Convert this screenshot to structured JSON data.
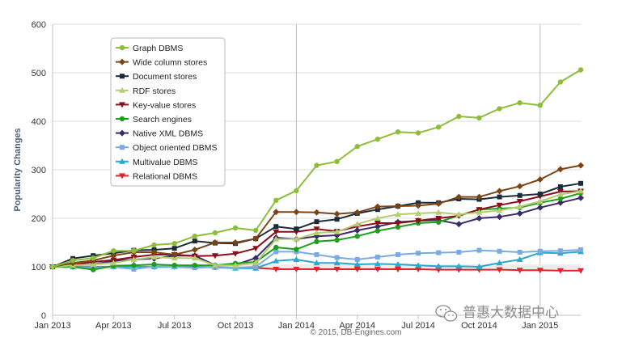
{
  "chart_data": {
    "type": "line",
    "ylabel": "Popularity Changes",
    "ylim": [
      0,
      600
    ],
    "yticks": [
      0,
      100,
      200,
      300,
      400,
      500,
      600
    ],
    "xticks": [
      {
        "label": "Jan 2013",
        "month": 0
      },
      {
        "label": "Apr 2013",
        "month": 3
      },
      {
        "label": "Jul 2013",
        "month": 6
      },
      {
        "label": "Oct 2013",
        "month": 9
      },
      {
        "label": "Jan 2014",
        "month": 12
      },
      {
        "label": "Apr 2014",
        "month": 15
      },
      {
        "label": "Jul 2014",
        "month": 18
      },
      {
        "label": "Oct 2014",
        "month": 21
      },
      {
        "label": "Jan 2015",
        "month": 24
      }
    ],
    "xrange": [
      0,
      26
    ],
    "x": [
      0,
      1,
      2,
      3,
      4,
      5,
      6,
      7,
      8,
      9,
      10,
      11,
      12,
      13,
      14,
      15,
      16,
      17,
      18,
      19,
      20,
      21,
      22,
      23,
      24,
      25,
      26
    ],
    "credit": "© 2015, DB-Engines.com",
    "series": [
      {
        "name": "Graph DBMS",
        "color": "#8dbd3a",
        "marker": "circle",
        "values": [
          100,
          113,
          118,
          133,
          133,
          145,
          148,
          163,
          170,
          180,
          175,
          237,
          257,
          309,
          317,
          348,
          363,
          378,
          376,
          388,
          410,
          407,
          426,
          438,
          433,
          481,
          506
        ]
      },
      {
        "name": "Wide column stores",
        "color": "#7a4416",
        "marker": "diamond",
        "values": [
          100,
          108,
          113,
          123,
          130,
          130,
          125,
          135,
          150,
          150,
          158,
          213,
          213,
          212,
          209,
          212,
          224,
          225,
          226,
          230,
          244,
          244,
          256,
          266,
          280,
          301,
          309
        ]
      },
      {
        "name": "Document stores",
        "color": "#1c2b3a",
        "marker": "square",
        "values": [
          100,
          117,
          123,
          128,
          134,
          135,
          138,
          153,
          149,
          148,
          158,
          183,
          178,
          193,
          198,
          210,
          218,
          225,
          232,
          232,
          240,
          239,
          244,
          247,
          250,
          265,
          272
        ]
      },
      {
        "name": "RDF stores",
        "color": "#b5cc73",
        "marker": "triangle",
        "values": [
          100,
          103,
          105,
          108,
          115,
          120,
          118,
          118,
          103,
          103,
          108,
          157,
          157,
          170,
          172,
          188,
          200,
          208,
          210,
          212,
          208,
          212,
          216,
          224,
          235,
          249,
          256
        ]
      },
      {
        "name": "Key-value stores",
        "color": "#8b0f1a",
        "marker": "triangle-down",
        "values": [
          100,
          104,
          110,
          114,
          120,
          125,
          125,
          122,
          123,
          127,
          138,
          172,
          172,
          178,
          173,
          183,
          190,
          190,
          195,
          200,
          205,
          218,
          227,
          235,
          245,
          255,
          256
        ]
      },
      {
        "name": "Search engines",
        "color": "#1ca01c",
        "marker": "circle",
        "values": [
          100,
          100,
          94,
          102,
          103,
          105,
          103,
          103,
          103,
          107,
          110,
          140,
          136,
          152,
          155,
          163,
          174,
          182,
          190,
          192,
          206,
          218,
          220,
          222,
          232,
          240,
          252
        ]
      },
      {
        "name": "Native XML DBMS",
        "color": "#3b2b6b",
        "marker": "diamond",
        "values": [
          100,
          103,
          105,
          112,
          115,
          117,
          123,
          123,
          103,
          104,
          118,
          160,
          157,
          163,
          165,
          175,
          183,
          192,
          195,
          196,
          188,
          200,
          203,
          210,
          222,
          232,
          242
        ]
      },
      {
        "name": "Object oriented DBMS",
        "color": "#7aaae0",
        "marker": "square",
        "values": [
          100,
          100,
          97,
          100,
          95,
          101,
          100,
          98,
          100,
          98,
          100,
          131,
          131,
          125,
          119,
          115,
          120,
          125,
          128,
          129,
          130,
          134,
          132,
          130,
          132,
          133,
          135
        ]
      },
      {
        "name": "Multivalue DBMS",
        "color": "#2aa8cf",
        "marker": "triangle",
        "values": [
          100,
          100,
          100,
          100,
          100,
          100,
          100,
          100,
          99,
          97,
          97,
          112,
          115,
          108,
          108,
          105,
          106,
          105,
          103,
          101,
          101,
          100,
          108,
          115,
          129,
          128,
          131
        ]
      },
      {
        "name": "Relational DBMS",
        "color": "#e0242a",
        "marker": "triangle-down",
        "values": [
          100,
          100,
          100,
          100,
          100,
          100,
          100,
          100,
          99,
          98,
          98,
          95,
          95,
          95,
          95,
          95,
          95,
          95,
          95,
          94,
          94,
          94,
          94,
          93,
          93,
          92,
          92
        ]
      }
    ]
  },
  "watermark": {
    "text": "普惠大数据中心"
  }
}
